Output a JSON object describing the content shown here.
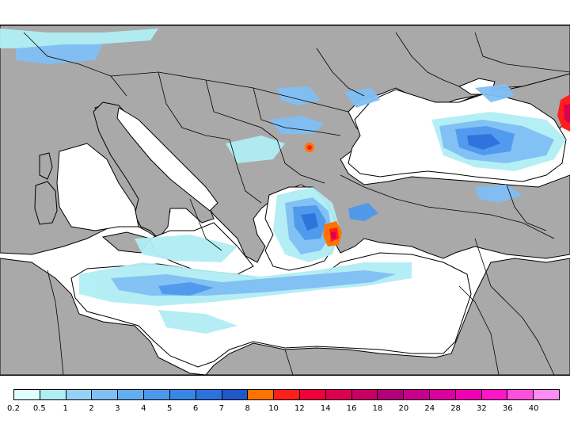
{
  "map": {
    "region": "Eastern Mediterranean and Black Sea",
    "land_color": "#a9a9a9",
    "sea_color": "#ffffff",
    "border_color": "#000000"
  },
  "legend": {
    "labels": [
      "0.2",
      "0.5",
      "1",
      "2",
      "3",
      "4",
      "5",
      "6",
      "7",
      "8",
      "10",
      "12",
      "14",
      "16",
      "18",
      "20",
      "24",
      "28",
      "32",
      "36",
      "40"
    ],
    "colors": [
      "#e0ffff",
      "#b0eef4",
      "#96d2f5",
      "#7fbff4",
      "#64aef0",
      "#4e98ec",
      "#3a86e6",
      "#2d72dc",
      "#2058c8",
      "#ff7300",
      "#ff1e1e",
      "#f0003c",
      "#dc0050",
      "#c80064",
      "#b40078",
      "#c8008c",
      "#dc00a0",
      "#f000b4",
      "#ff14c8",
      "#ff50dc",
      "#ff8cf0"
    ]
  }
}
